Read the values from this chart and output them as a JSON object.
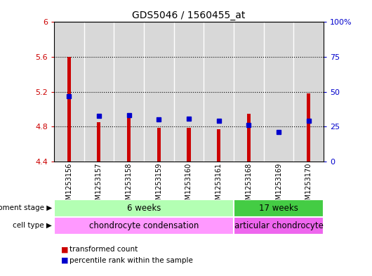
{
  "title": "GDS5046 / 1560455_at",
  "samples": [
    "GSM1253156",
    "GSM1253157",
    "GSM1253158",
    "GSM1253159",
    "GSM1253160",
    "GSM1253161",
    "GSM1253168",
    "GSM1253169",
    "GSM1253170"
  ],
  "bar_values": [
    5.6,
    4.85,
    4.9,
    4.79,
    4.79,
    4.77,
    4.95,
    4.4,
    5.18
  ],
  "percentile_values": [
    5.15,
    4.92,
    4.93,
    4.88,
    4.89,
    4.87,
    4.82,
    4.74,
    4.87
  ],
  "bar_bottom": 4.4,
  "ylim_left": [
    4.4,
    6.0
  ],
  "ylim_right": [
    0,
    100
  ],
  "yticks_left": [
    4.4,
    4.8,
    5.2,
    5.6,
    6.0
  ],
  "ytick_labels_left": [
    "4.4",
    "4.8",
    "5.2",
    "5.6",
    "6"
  ],
  "yticks_right": [
    0,
    25,
    50,
    75,
    100
  ],
  "ytick_labels_right": [
    "0",
    "25",
    "50",
    "75",
    "100%"
  ],
  "grid_values": [
    4.8,
    5.2,
    5.6
  ],
  "bar_color": "#cc0000",
  "dot_color": "#0000cc",
  "col_bg_color": "#d8d8d8",
  "dev_stage_groups": [
    {
      "label": "6 weeks",
      "start": 0,
      "end": 5,
      "color": "#b3ffb3"
    },
    {
      "label": "17 weeks",
      "start": 6,
      "end": 8,
      "color": "#44cc44"
    }
  ],
  "cell_type_groups": [
    {
      "label": "chondrocyte condensation",
      "start": 0,
      "end": 5,
      "color": "#ff99ff"
    },
    {
      "label": "articular chondrocyte",
      "start": 6,
      "end": 8,
      "color": "#ee66ee"
    }
  ],
  "dev_stage_label": "development stage",
  "cell_type_label": "cell type",
  "legend_bar_label": "transformed count",
  "legend_dot_label": "percentile rank within the sample",
  "title_fontsize": 10,
  "axis_color_left": "#cc0000",
  "axis_color_right": "#0000cc",
  "bar_width": 0.12
}
